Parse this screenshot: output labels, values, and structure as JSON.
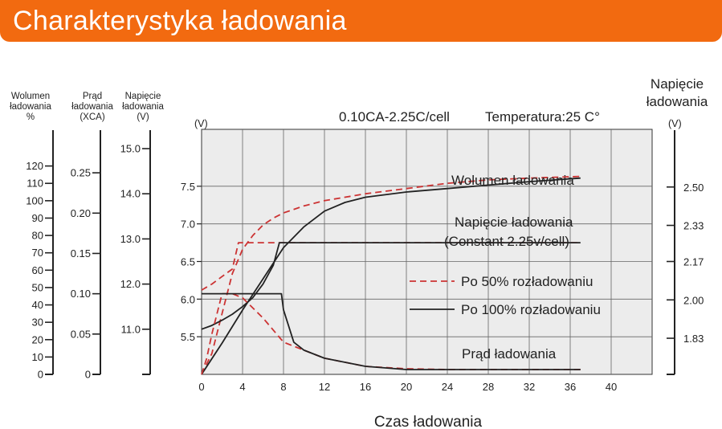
{
  "header": {
    "title": "Charakterystyka ładowania"
  },
  "colors": {
    "banner": "#f26a10",
    "plot_bg": "#ececec",
    "grid": "#666666",
    "series_50": "#cc3333",
    "series_100": "#222222"
  },
  "chart_data": {
    "type": "line",
    "title": "0.10CA-2.25C/cell",
    "temperature": "Temperatura:25 C°",
    "xlabel": "Czas ładowania",
    "xlim": [
      0,
      44
    ],
    "x_ticks": [
      "0",
      "4",
      "8",
      "12",
      "16",
      "20",
      "24",
      "28",
      "32",
      "36",
      "40"
    ],
    "grid": true,
    "left_axes": [
      {
        "header": [
          "Wolumen",
          "ładowania",
          "%"
        ],
        "unit": "",
        "range": [
          0,
          130
        ],
        "ticks": [
          "0",
          "10",
          "20",
          "30",
          "40",
          "50",
          "60",
          "70",
          "80",
          "90",
          "100",
          "110",
          "120"
        ]
      },
      {
        "header": [
          "Prąd",
          "ładowania",
          "(XCA)"
        ],
        "unit": "",
        "range": [
          0,
          0.28
        ],
        "ticks": [
          "0",
          "0.05",
          "0.10",
          "0.15",
          "0.20",
          "0.25"
        ]
      },
      {
        "header": [
          "Napięcie",
          "ładowania",
          "(V)"
        ],
        "unit": "",
        "range": [
          10.0,
          15.0
        ],
        "ticks": [
          "11.0",
          "12.0",
          "13.0",
          "14.0",
          "15.0"
        ]
      },
      {
        "header": [],
        "unit": "(V)",
        "range": [
          5.0,
          8.0
        ],
        "ticks": [
          "5.5",
          "6.0",
          "6.5",
          "7.0",
          "7.5"
        ]
      }
    ],
    "right_axis": {
      "header": [
        "Napięcie",
        "ładowania"
      ],
      "unit": "(V)",
      "range": [
        1.67,
        2.67
      ],
      "ticks": [
        "1.83",
        "2.00",
        "2.17",
        "2.33",
        "2.50"
      ]
    },
    "legend": {
      "dashed_label": "Po 50% rozładowaniu",
      "solid_label": "Po 100% rozładowaniu"
    },
    "annotations": {
      "volume": "Wolumen ładowania",
      "voltage_line1": "Napięcie ładowania",
      "voltage_line2": "(Constant 2.25v/cell)",
      "current": "Prąd ładowania"
    },
    "series": [
      {
        "group": "Wolumen ładowania",
        "style": "dashed",
        "axis": "left-0",
        "x": [
          0,
          1,
          2,
          3,
          4,
          5,
          6,
          7,
          8,
          10,
          12,
          16,
          20,
          24,
          28,
          32,
          37
        ],
        "y": [
          0,
          12,
          35,
          58,
          72,
          80,
          86,
          90,
          93,
          97,
          100,
          104,
          107,
          110,
          112,
          113,
          114
        ]
      },
      {
        "group": "Wolumen ładowania",
        "style": "solid",
        "axis": "left-0",
        "x": [
          0,
          2,
          4,
          6,
          8,
          10,
          12,
          14,
          16,
          20,
          24,
          28,
          32,
          37
        ],
        "y": [
          0,
          18,
          37,
          55,
          73,
          85,
          94,
          99,
          102,
          105,
          107,
          109,
          111,
          113
        ]
      },
      {
        "group": "Napięcie ładowania",
        "style": "dashed",
        "axis": "left-3",
        "x": [
          0,
          1,
          2,
          3,
          3.6,
          4,
          37
        ],
        "y": [
          6.12,
          6.2,
          6.3,
          6.4,
          6.75,
          6.75,
          6.75
        ]
      },
      {
        "group": "Napięcie ładowania",
        "style": "solid",
        "axis": "left-3",
        "x": [
          0,
          1,
          2,
          3,
          4,
          5,
          6,
          7,
          7.6,
          8,
          37
        ],
        "y": [
          5.6,
          5.65,
          5.72,
          5.8,
          5.9,
          6.02,
          6.2,
          6.45,
          6.75,
          6.75,
          6.75
        ]
      },
      {
        "group": "Prąd ładowania",
        "style": "dashed",
        "axis": "left-1",
        "x": [
          0,
          0.5,
          1,
          2,
          3,
          4,
          6,
          8,
          12,
          16,
          20,
          24,
          28,
          37
        ],
        "y": [
          0,
          0.02,
          0.05,
          0.1,
          0.1,
          0.095,
          0.07,
          0.04,
          0.02,
          0.01,
          0.007,
          0.006,
          0.006,
          0.006
        ]
      },
      {
        "group": "Prąd ładowania",
        "style": "solid",
        "axis": "left-1",
        "x": [
          0,
          7.8,
          8,
          9,
          10,
          12,
          16,
          20,
          24,
          37
        ],
        "y": [
          0.1,
          0.1,
          0.08,
          0.04,
          0.03,
          0.02,
          0.01,
          0.006,
          0.006,
          0.006
        ]
      }
    ]
  }
}
